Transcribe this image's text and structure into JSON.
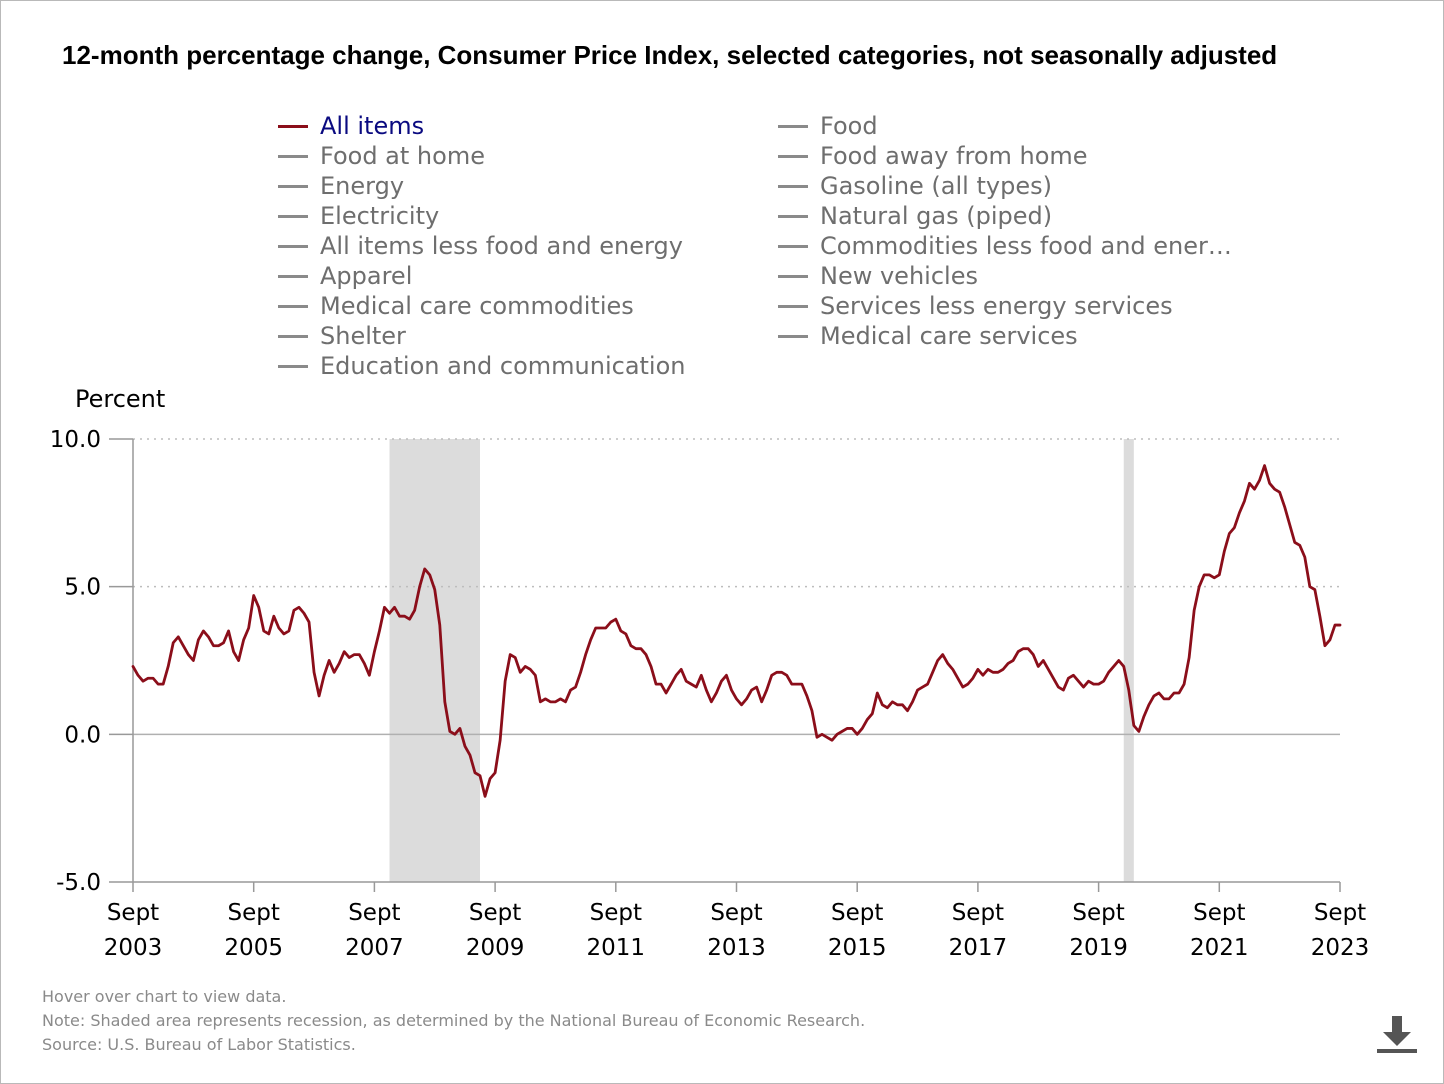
{
  "title": "12-month percentage change, Consumer Price Index, selected categories, not seasonally adjusted",
  "legend": {
    "left": [
      "All items",
      "Food at home",
      "Energy",
      "Electricity",
      "All items less food and energy",
      "Apparel",
      "Medical care commodities",
      "Shelter",
      "Education and communication"
    ],
    "right": [
      "Food",
      "Food away from home",
      "Gasoline (all types)",
      "Natural gas (piped)",
      "Commodities less food and ener…",
      "New vehicles",
      "Services less energy services",
      "Medical care services"
    ]
  },
  "colors": {
    "series": "#8b0e1a",
    "active_label": "#0a0a80",
    "inactive": "#8a8a8a",
    "recession": "#dcdcdc",
    "grid": "#bdbdbd"
  },
  "notes": {
    "hover": "Hover over chart to view data.",
    "note": "Note: Shaded area represents recession, as determined by the National Bureau of Economic Research.",
    "source": "Source: U.S. Bureau of Labor Statistics."
  },
  "icons": {
    "download": "download-icon"
  },
  "chart_data": {
    "type": "line",
    "title": "12-month percentage change, Consumer Price Index, selected categories, not seasonally adjusted",
    "ylabel": "Percent",
    "xlabel": "",
    "ylim": [
      -5,
      10
    ],
    "yticks": [
      "10.0",
      "5.0",
      "0.0",
      "-5.0"
    ],
    "ytick_values": [
      10,
      5,
      0,
      -5
    ],
    "xticks": [
      {
        "month": "Sept",
        "year": "2003",
        "index": 0
      },
      {
        "month": "Sept",
        "year": "2005",
        "index": 24
      },
      {
        "month": "Sept",
        "year": "2007",
        "index": 48
      },
      {
        "month": "Sept",
        "year": "2009",
        "index": 72
      },
      {
        "month": "Sept",
        "year": "2011",
        "index": 96
      },
      {
        "month": "Sept",
        "year": "2013",
        "index": 120
      },
      {
        "month": "Sept",
        "year": "2015",
        "index": 144
      },
      {
        "month": "Sept",
        "year": "2017",
        "index": 168
      },
      {
        "month": "Sept",
        "year": "2019",
        "index": 192
      },
      {
        "month": "Sept",
        "year": "2021",
        "index": 216
      },
      {
        "month": "Sept",
        "year": "2023",
        "index": 240
      }
    ],
    "start": "Sept 2003",
    "end": "Sept 2023",
    "recessions": [
      {
        "label": "Dec 2007 - Jun 2009",
        "start_index": 51,
        "end_index": 69
      },
      {
        "label": "Feb 2020 - Apr 2020",
        "start_index": 197,
        "end_index": 199
      }
    ],
    "series": [
      {
        "name": "All items",
        "values": [
          2.3,
          2.0,
          1.8,
          1.9,
          1.9,
          1.7,
          1.7,
          2.3,
          3.1,
          3.3,
          3.0,
          2.7,
          2.5,
          3.2,
          3.5,
          3.3,
          3.0,
          3.0,
          3.1,
          3.5,
          2.8,
          2.5,
          3.2,
          3.6,
          4.7,
          4.3,
          3.5,
          3.4,
          4.0,
          3.6,
          3.4,
          3.5,
          4.2,
          4.3,
          4.1,
          3.8,
          2.1,
          1.3,
          2.0,
          2.5,
          2.1,
          2.4,
          2.8,
          2.6,
          2.7,
          2.7,
          2.4,
          2.0,
          2.8,
          3.5,
          4.3,
          4.1,
          4.3,
          4.0,
          4.0,
          3.9,
          4.2,
          5.0,
          5.6,
          5.4,
          4.9,
          3.7,
          1.1,
          0.1,
          0.0,
          0.2,
          -0.4,
          -0.7,
          -1.3,
          -1.4,
          -2.1,
          -1.5,
          -1.3,
          -0.2,
          1.8,
          2.7,
          2.6,
          2.1,
          2.3,
          2.2,
          2.0,
          1.1,
          1.2,
          1.1,
          1.1,
          1.2,
          1.1,
          1.5,
          1.6,
          2.1,
          2.7,
          3.2,
          3.6,
          3.6,
          3.6,
          3.8,
          3.9,
          3.5,
          3.4,
          3.0,
          2.9,
          2.9,
          2.7,
          2.3,
          1.7,
          1.7,
          1.4,
          1.7,
          2.0,
          2.2,
          1.8,
          1.7,
          1.6,
          2.0,
          1.5,
          1.1,
          1.4,
          1.8,
          2.0,
          1.5,
          1.2,
          1.0,
          1.2,
          1.5,
          1.6,
          1.1,
          1.5,
          2.0,
          2.1,
          2.1,
          2.0,
          1.7,
          1.7,
          1.7,
          1.3,
          0.8,
          -0.1,
          0.0,
          -0.1,
          -0.2,
          0.0,
          0.1,
          0.2,
          0.2,
          0.0,
          0.2,
          0.5,
          0.7,
          1.4,
          1.0,
          0.9,
          1.1,
          1.0,
          1.0,
          0.8,
          1.1,
          1.5,
          1.6,
          1.7,
          2.1,
          2.5,
          2.7,
          2.4,
          2.2,
          1.9,
          1.6,
          1.7,
          1.9,
          2.2,
          2.0,
          2.2,
          2.1,
          2.1,
          2.2,
          2.4,
          2.5,
          2.8,
          2.9,
          2.9,
          2.7,
          2.3,
          2.5,
          2.2,
          1.9,
          1.6,
          1.5,
          1.9,
          2.0,
          1.8,
          1.6,
          1.8,
          1.7,
          1.7,
          1.8,
          2.1,
          2.3,
          2.5,
          2.3,
          1.5,
          0.3,
          0.1,
          0.6,
          1.0,
          1.3,
          1.4,
          1.2,
          1.2,
          1.4,
          1.4,
          1.7,
          2.6,
          4.2,
          5.0,
          5.4,
          5.4,
          5.3,
          5.4,
          6.2,
          6.8,
          7.0,
          7.5,
          7.9,
          8.5,
          8.3,
          8.6,
          9.1,
          8.5,
          8.3,
          8.2,
          7.7,
          7.1,
          6.5,
          6.4,
          6.0,
          5.0,
          4.9,
          4.0,
          3.0,
          3.2,
          3.7,
          3.7
        ]
      }
    ]
  }
}
